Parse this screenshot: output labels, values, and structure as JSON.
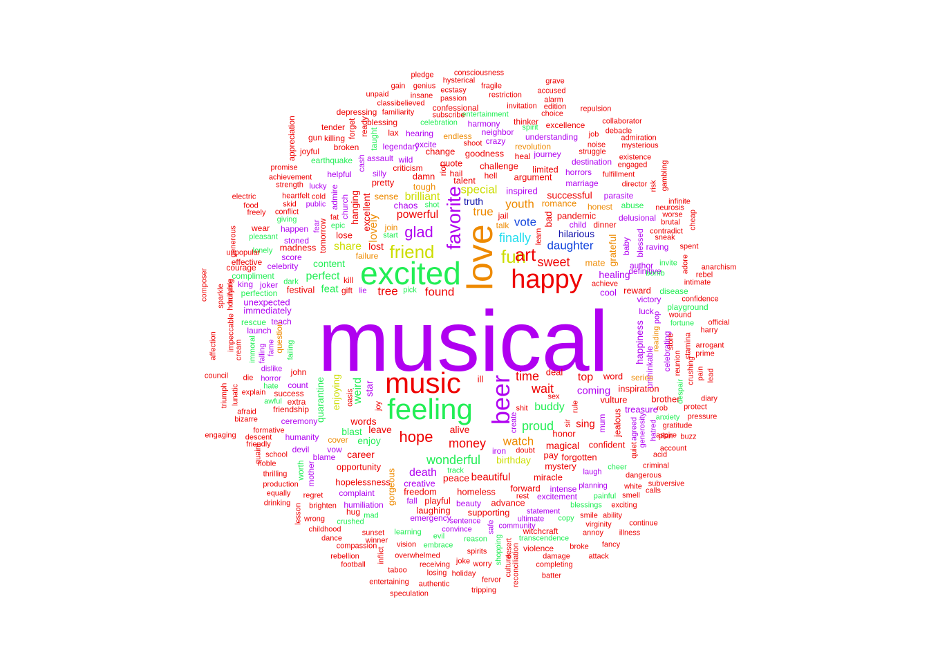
{
  "palette": {
    "red": "#ee0000",
    "orange": "#ee8a00",
    "yellow": "#ccdd00",
    "green": "#22ee55",
    "cyan": "#22ddee",
    "blue": "#1144dd",
    "navy": "#1111aa",
    "purple": "#b000f0"
  },
  "words": [
    "musical",
    "excited",
    "love",
    "happy",
    "feeling",
    "music",
    "beer",
    "fun",
    "friend",
    "favorite",
    "art",
    "glad",
    "powerful",
    "hope",
    "finally",
    "sweet",
    "wait",
    "time",
    "top",
    "daughter",
    "vote",
    "youth",
    "special",
    "brilliant",
    "true",
    "truth",
    "peace",
    "wonderful",
    "watch",
    "proud",
    "money",
    "buddy",
    "coming",
    "sing",
    "hilarious",
    "found",
    "tree",
    "content",
    "share",
    "perfect",
    "feat",
    "lost",
    "excellent",
    "hanging",
    "lovely",
    "sense",
    "tough",
    "challenge",
    "goodness",
    "quote",
    "talent",
    "damn",
    "pretty",
    "criticism",
    "argument",
    "successful",
    "pandemic",
    "bad",
    "dinner",
    "child",
    "romance",
    "inspired",
    "hell",
    "delusional",
    "parasite",
    "abuse",
    "honest",
    "healing",
    "grateful",
    "mate",
    "reward",
    "cool",
    "achieve",
    "victory",
    "luck",
    "baby",
    "author",
    "blessed",
    "raving",
    "marriage",
    "destination",
    "limited",
    "horrors",
    "heal",
    "journey",
    "understanding",
    "revolution",
    "spirit",
    "neighbor",
    "crazy",
    "harmony",
    "thinker",
    "invitation",
    "entertainment",
    "celebration",
    "blessing",
    "familiarity",
    "believed",
    "passion",
    "ecstasy",
    "insane",
    "genius",
    "gain",
    "unpaid",
    "classic",
    "pledge",
    "hysterical",
    "consciousness",
    "fragile",
    "restriction",
    "accused",
    "grave",
    "alarm",
    "edition",
    "choice",
    "repulsion",
    "excellence",
    "collaborator",
    "debacle",
    "admiration",
    "mysterious",
    "job",
    "noise",
    "struggle",
    "existence",
    "engaged",
    "fulfillment",
    "director",
    "gambling",
    "risk",
    "infinite",
    "neurosis",
    "worse",
    "brutal",
    "sneak",
    "contradict",
    "cheap",
    "spent",
    "adore",
    "anarchism",
    "rebel",
    "intimate",
    "confidence",
    "playground",
    "wound",
    "fortune",
    "official",
    "harry",
    "arrogant",
    "prime",
    "lead",
    "pain",
    "stamina",
    "diary",
    "protect",
    "pressure",
    "buzz",
    "aspire",
    "account",
    "criminal",
    "dangerous",
    "subversive",
    "calls",
    "continue",
    "illness",
    "attack",
    "fancy",
    "broke",
    "annoy",
    "virginity",
    "smile",
    "ability",
    "exciting",
    "painful",
    "smell",
    "white",
    "planning",
    "laugh",
    "cheer",
    "confident",
    "forgotten",
    "mystery",
    "magical",
    "pay",
    "honor",
    "rule",
    "sex",
    "deal",
    "word",
    "inspiration",
    "vulture",
    "brother",
    "treasure",
    "rob",
    "anxiety",
    "gratitude",
    "plan",
    "acid",
    "generosity",
    "hatred",
    "quiet",
    "agreed",
    "jealous",
    "mum",
    "sir",
    "shit",
    "create",
    "doubt",
    "iron",
    "birthday",
    "career",
    "opportunity",
    "hopelessness",
    "gorgeous",
    "creative",
    "complaint",
    "humiliation",
    "fall",
    "playful",
    "laughing",
    "freedom",
    "homeless",
    "beauty",
    "supporting",
    "advance",
    "rest",
    "excitement",
    "intense",
    "blessings",
    "copy",
    "statement",
    "ultimate",
    "community",
    "witchcraft",
    "transcendence",
    "violence",
    "damage",
    "completing",
    "batter",
    "reconciliation",
    "culture",
    "desert",
    "shopping",
    "reason",
    "spirits",
    "fervor",
    "tripping",
    "holiday",
    "worry",
    "joke",
    "receiving",
    "losing",
    "authentic",
    "overwhelmed",
    "taboo",
    "speculation",
    "entertaining",
    "inflict",
    "vision",
    "learning",
    "evil",
    "embrace",
    "convince",
    "sentence",
    "safe",
    "emergency",
    "mad",
    "crushed",
    "hug",
    "winner",
    "sunset",
    "compassion",
    "rebellion",
    "football",
    "dance",
    "childhood",
    "wrong",
    "lesson",
    "brighten",
    "regret",
    "equally",
    "drinking",
    "production",
    "thrilling",
    "noble",
    "quaint",
    "school",
    "friendly",
    "descent",
    "formative",
    "engaging",
    "bizarre",
    "afraid",
    "explain",
    "lunatic",
    "triumph",
    "council",
    "affection",
    "composer",
    "sparkle",
    "impeccable",
    "horrifying",
    "humble",
    "cream",
    "die",
    "immoral",
    "failing",
    "falling",
    "fame",
    "question",
    "dislike",
    "horror",
    "hate",
    "awful",
    "success",
    "friendship",
    "ceremony",
    "humanity",
    "devil",
    "mother",
    "worth",
    "blame",
    "vow",
    "cover",
    "enjoy",
    "leave",
    "words",
    "alive",
    "blast",
    "star",
    "weird",
    "oasis",
    "joy",
    "quarantine",
    "enjoying",
    "john",
    "count",
    "extra",
    "launch",
    "teach",
    "rescue",
    "immediately",
    "unexpected",
    "perfection",
    "compliment",
    "effective",
    "courage",
    "king",
    "joker",
    "festival",
    "kill",
    "gift",
    "lie",
    "pick",
    "failure",
    "dark",
    "celebrity",
    "score",
    "madness",
    "lonely",
    "stoned",
    "happen",
    "pleasant",
    "wear",
    "generous",
    "freely",
    "conflict",
    "food",
    "electric",
    "heartfelt",
    "skid",
    "strength",
    "achievement",
    "promise",
    "lucky",
    "public",
    "cold",
    "fat",
    "giving",
    "epic",
    "fear",
    "tomorrow",
    "lose",
    "church",
    "admire",
    "helpful",
    "silly",
    "assault",
    "earthquake",
    "cash",
    "taught",
    "killing",
    "gun",
    "broken",
    "tender",
    "forget",
    "ready",
    "joyful",
    "appreciation",
    "depressing",
    "lax",
    "hearing",
    "legendary",
    "excite",
    "change",
    "shoot",
    "endless",
    "subscribe",
    "confessional",
    "wild",
    "riot",
    "hail",
    "chaos",
    "shot",
    "join",
    "start",
    "jail",
    "talk",
    "learn",
    "forward",
    "miracle",
    "beautiful",
    "death",
    "track",
    "ill",
    "unthinkable",
    "happiness",
    "celebrating",
    "reunion",
    "store",
    "crushing",
    "despair",
    "reading",
    "pop",
    "definitive",
    "disease",
    "bomb",
    "invite",
    "series",
    "unpopular",
    "deadline"
  ]
}
